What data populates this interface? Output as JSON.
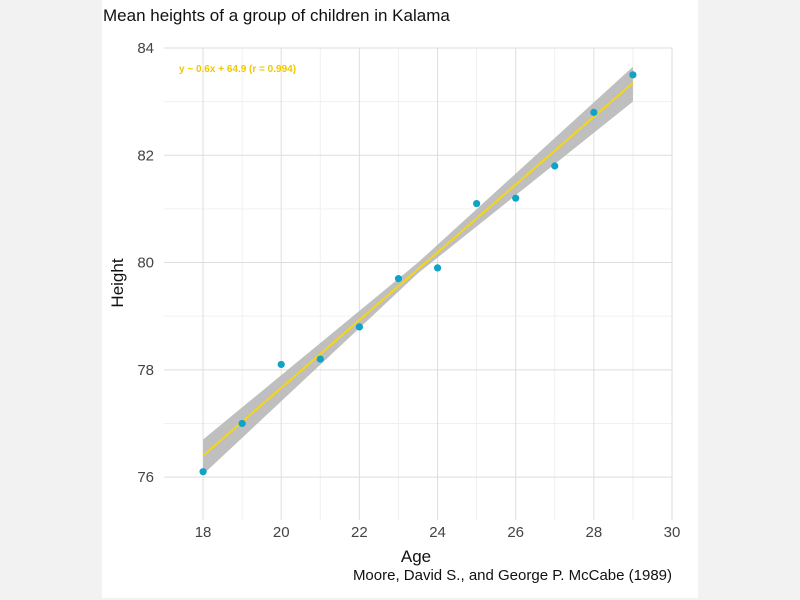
{
  "colors": {
    "point": "#0fa3c6",
    "fit_line": "#f5d614",
    "band": "#b8b8b8",
    "grid_major": "#dedede",
    "grid_minor": "#f0f0f0",
    "equation_text": "#f0c800"
  },
  "chart_data": {
    "type": "scatter",
    "title": "Mean heights of a group of children in Kalama",
    "xlabel": "Age",
    "ylabel": "Height",
    "caption": "Moore, David S., and George P. McCabe (1989)",
    "xlim": [
      17,
      30
    ],
    "ylim": [
      75.2,
      84
    ],
    "xticks": [
      18,
      20,
      22,
      24,
      26,
      28,
      30
    ],
    "yticks": [
      76,
      78,
      80,
      82,
      84
    ],
    "grid": true,
    "points": [
      {
        "x": 18,
        "y": 76.1
      },
      {
        "x": 19,
        "y": 77.0
      },
      {
        "x": 20,
        "y": 78.1
      },
      {
        "x": 21,
        "y": 78.2
      },
      {
        "x": 22,
        "y": 78.8
      },
      {
        "x": 23,
        "y": 79.7
      },
      {
        "x": 24,
        "y": 79.9
      },
      {
        "x": 25,
        "y": 81.1
      },
      {
        "x": 26,
        "y": 81.2
      },
      {
        "x": 27,
        "y": 81.8
      },
      {
        "x": 28,
        "y": 82.8
      },
      {
        "x": 29,
        "y": 83.5
      }
    ],
    "fit": {
      "label": "y ~ 0.6x + 64.9 (r = 0.994)",
      "x_range": [
        18,
        29
      ],
      "line": [
        {
          "x": 18,
          "y": 76.4
        },
        {
          "x": 29,
          "y": 83.35
        }
      ],
      "band_upper": [
        {
          "x": 18,
          "y": 76.7
        },
        {
          "x": 23.5,
          "y": 80.0
        },
        {
          "x": 29,
          "y": 83.65
        }
      ],
      "band_lower": [
        {
          "x": 18,
          "y": 76.05
        },
        {
          "x": 23.5,
          "y": 79.8
        },
        {
          "x": 29,
          "y": 83.0
        }
      ]
    }
  }
}
